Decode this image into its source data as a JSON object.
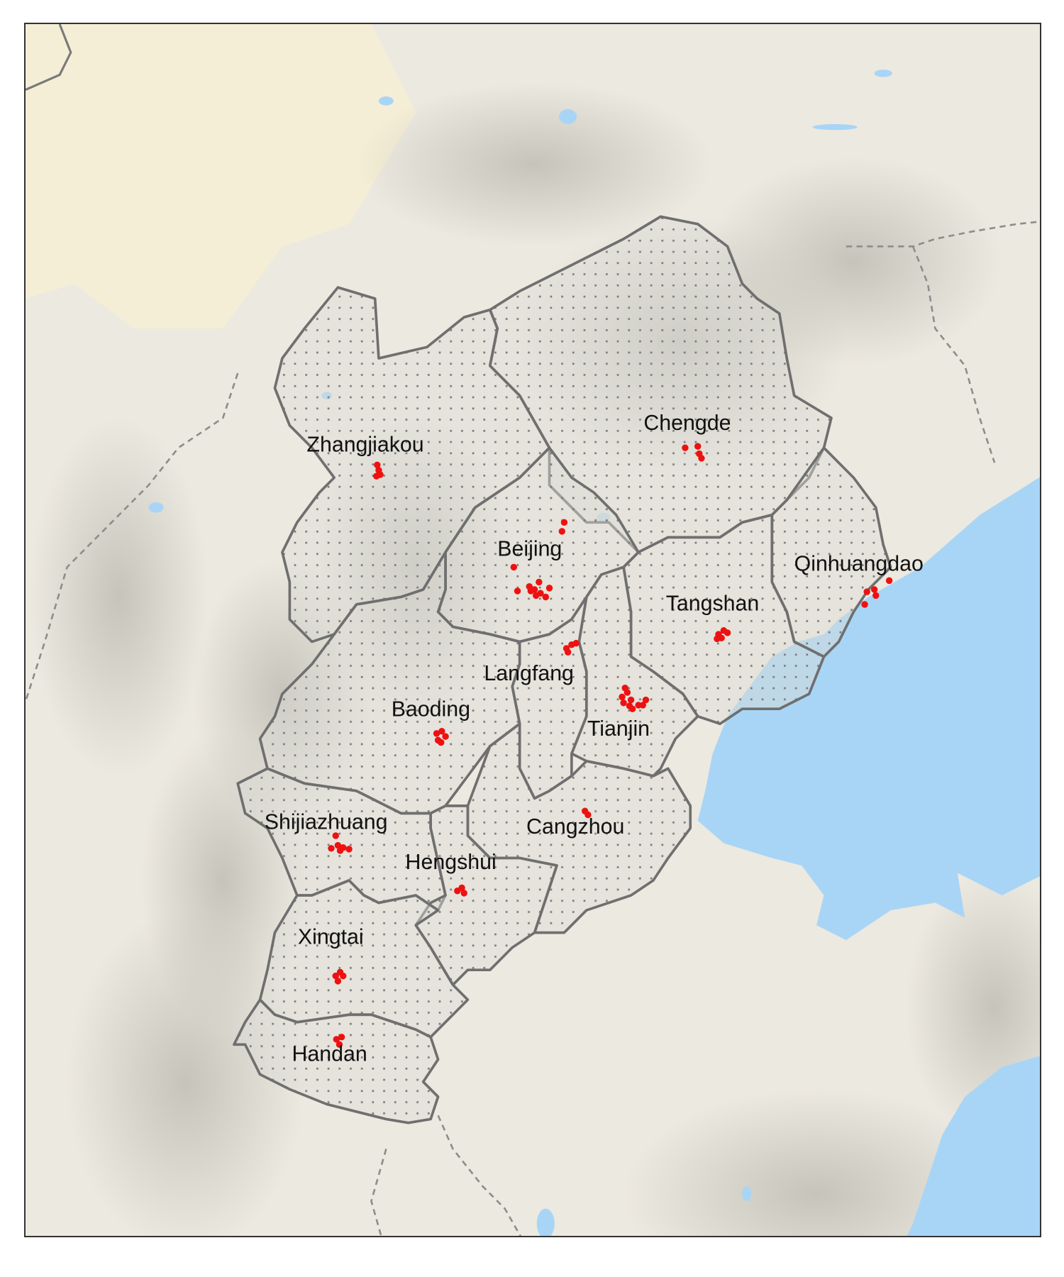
{
  "basemap": {
    "land_color": "#ece9e0",
    "sea_color": "#a8d5f6",
    "region_outline_color": "#6f6f6f",
    "site_color": "#ee1111",
    "hatch": "dot-pattern"
  },
  "cities": [
    {
      "id": "zhangjiakou",
      "label": "Zhangjiakou"
    },
    {
      "id": "chengde",
      "label": "Chengde"
    },
    {
      "id": "beijing",
      "label": "Beijing"
    },
    {
      "id": "qinhuangdao",
      "label": "Qinhuangdao"
    },
    {
      "id": "tangshan",
      "label": "Tangshan"
    },
    {
      "id": "langfang",
      "label": "Langfang"
    },
    {
      "id": "baoding",
      "label": "Baoding"
    },
    {
      "id": "tianjin",
      "label": "Tianjin"
    },
    {
      "id": "shijiazhuang",
      "label": "Shijiazhuang"
    },
    {
      "id": "cangzhou",
      "label": "Cangzhou"
    },
    {
      "id": "hengshui",
      "label": "Hengshui"
    },
    {
      "id": "xingtai",
      "label": "Xingtai"
    },
    {
      "id": "handan",
      "label": "Handan"
    }
  ]
}
